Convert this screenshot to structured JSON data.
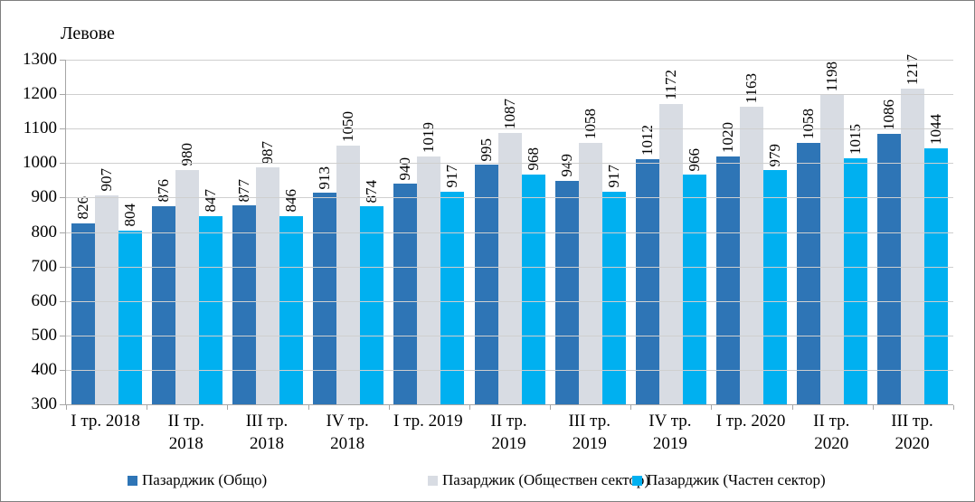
{
  "chart_data": {
    "type": "bar",
    "title": "Левове",
    "ylabel": "Левове",
    "xlabel": "",
    "grid": true,
    "legend_position": "bottom",
    "y_axis": {
      "min": 300,
      "max": 1300,
      "step": 100
    },
    "categories": [
      "I тр. 2018",
      "II тр. 2018",
      "III тр. 2018",
      "IV тр. 2018",
      "I тр. 2019",
      "II тр. 2019",
      "III тр. 2019",
      "IV тр. 2019",
      "I тр. 2020",
      "II тр. 2020",
      "III тр. 2020"
    ],
    "x_tick_label_lines": [
      [
        "I тр. 2018"
      ],
      [
        "II тр.",
        "2018"
      ],
      [
        "III тр.",
        "2018"
      ],
      [
        "IV тр.",
        "2018"
      ],
      [
        "I тр. 2019"
      ],
      [
        "II тр.",
        "2019"
      ],
      [
        "III тр.",
        "2019"
      ],
      [
        "IV тр.",
        "2019"
      ],
      [
        "I тр. 2020"
      ],
      [
        "II тр.",
        "2020"
      ],
      [
        "III тр.",
        "2020"
      ]
    ],
    "series": [
      {
        "name": "Пазарджик (Общо)",
        "color": "#2E75B6",
        "values": [
          826,
          876,
          877,
          913,
          940,
          995,
          949,
          1012,
          1020,
          1058,
          1086
        ]
      },
      {
        "name": "Пазарджик (Обществен сектор)",
        "color": "#D8DCE3",
        "values": [
          907,
          980,
          987,
          1050,
          1019,
          1087,
          1058,
          1172,
          1163,
          1198,
          1217
        ]
      },
      {
        "name": "Пазарджик (Частен сектор)",
        "color": "#00B0F0",
        "values": [
          804,
          847,
          846,
          874,
          917,
          968,
          917,
          966,
          979,
          1015,
          1044
        ]
      }
    ]
  }
}
